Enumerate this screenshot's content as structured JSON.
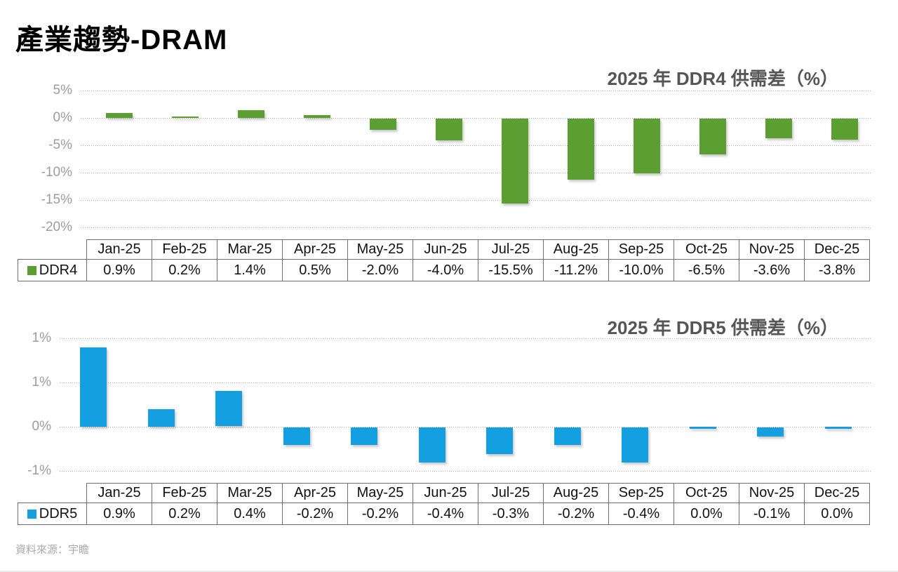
{
  "page": {
    "title": "產業趨勢-DRAM",
    "source_note": "資料來源：宇瞻"
  },
  "colors": {
    "ddr4_green": "#5B9E31",
    "ddr5_blue": "#14A0E0",
    "gridline_gray": "#ababab",
    "table_border_gray": "#6e6e6e",
    "axis_label_gray": "#9c9c9c",
    "chart_title_gray": "#555555"
  },
  "chart_data": [
    {
      "type": "bar",
      "title": "2025 年 DDR4 供需差（%）",
      "categories": [
        "Jan-25",
        "Feb-25",
        "Mar-25",
        "Apr-25",
        "May-25",
        "Jun-25",
        "Jul-25",
        "Aug-25",
        "Sep-25",
        "Oct-25",
        "Nov-25",
        "Dec-25"
      ],
      "series": [
        {
          "name": "DDR4",
          "values": [
            0.9,
            0.2,
            1.4,
            0.5,
            -2.0,
            -4.0,
            -15.5,
            -11.2,
            -10.0,
            -6.5,
            -3.6,
            -3.8
          ],
          "labels": [
            "0.9%",
            "0.2%",
            "1.4%",
            "0.5%",
            "-2.0%",
            "-4.0%",
            "-15.5%",
            "-11.2%",
            "-10.0%",
            "-6.5%",
            "-3.6%",
            "-3.8%"
          ]
        }
      ],
      "y_ticks": [
        {
          "label": "5%",
          "value": 5
        },
        {
          "label": "0%",
          "value": 0
        },
        {
          "label": "-5%",
          "value": -5
        },
        {
          "label": "-10%",
          "value": -10
        },
        {
          "label": "-15%",
          "value": -15
        },
        {
          "label": "-20%",
          "value": -20
        }
      ],
      "ylim": [
        -20,
        5
      ],
      "xlabel": "",
      "ylabel": "",
      "grid": "horizontal-dotted",
      "legend_position": "table-left",
      "bar_color": "#5B9E31"
    },
    {
      "type": "bar",
      "title": "2025 年 DDR5 供需差（%）",
      "categories": [
        "Jan-25",
        "Feb-25",
        "Mar-25",
        "Apr-25",
        "May-25",
        "Jun-25",
        "Jul-25",
        "Aug-25",
        "Sep-25",
        "Oct-25",
        "Nov-25",
        "Dec-25"
      ],
      "series": [
        {
          "name": "DDR5",
          "values": [
            0.9,
            0.2,
            0.4,
            -0.2,
            -0.2,
            -0.4,
            -0.3,
            -0.2,
            -0.4,
            0.0,
            -0.1,
            0.0
          ],
          "labels": [
            "0.9%",
            "0.2%",
            "0.4%",
            "-0.2%",
            "-0.2%",
            "-0.4%",
            "-0.3%",
            "-0.2%",
            "-0.4%",
            "0.0%",
            "-0.1%",
            "0.0%"
          ]
        }
      ],
      "y_ticks": [
        {
          "label": "1%",
          "value": 1.0
        },
        {
          "label": "1%",
          "value": 0.5
        },
        {
          "label": "0%",
          "value": 0.0
        },
        {
          "label": "-1%",
          "value": -0.5
        }
      ],
      "ylim": [
        -0.59,
        1.0
      ],
      "xlabel": "",
      "ylabel": "",
      "grid": "horizontal-dotted",
      "legend_position": "table-left",
      "bar_color": "#14A0E0"
    }
  ]
}
